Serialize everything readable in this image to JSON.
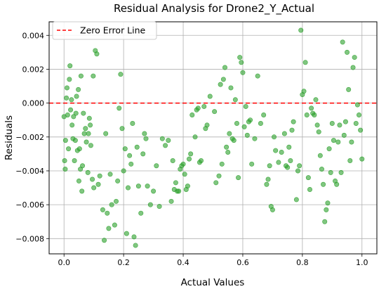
{
  "chart_data": {
    "type": "scatter",
    "title": "Residual Analysis for Drone2_Y_Actual",
    "xlabel": "Actual Values",
    "ylabel": "Residuals",
    "xlim": [
      -0.05,
      1.05
    ],
    "ylim": [
      -0.0089,
      0.0048
    ],
    "xticks": [
      0.0,
      0.2,
      0.4,
      0.6,
      0.8,
      1.0
    ],
    "xtick_labels": [
      "0.0",
      "0.2",
      "0.4",
      "0.6",
      "0.8",
      "1.0"
    ],
    "yticks": [
      -0.008,
      -0.006,
      -0.004,
      -0.002,
      0.0,
      0.002,
      0.004
    ],
    "ytick_labels": [
      "−0.008",
      "−0.006",
      "−0.004",
      "−0.002",
      "0.000",
      "0.002",
      "0.004"
    ],
    "grid": true,
    "legend": {
      "placement": "top-left",
      "entries": [
        {
          "label": "Zero Error Line",
          "style": "dashed",
          "color": "#ff0000"
        }
      ]
    },
    "reference_line": {
      "y": 0.0,
      "color": "#ff0000",
      "style": "dashed",
      "label": "Zero Error Line"
    },
    "point_color": "#2ca02c",
    "series": [
      {
        "points": [
          [
            0.0,
            -0.0008
          ],
          [
            0.002,
            -0.0034
          ],
          [
            0.004,
            -0.0039
          ],
          [
            0.005,
            -0.0022
          ],
          [
            0.008,
            0.0003
          ],
          [
            0.01,
            0.0009
          ],
          [
            0.012,
            -0.0007
          ],
          [
            0.015,
            -0.0027
          ],
          [
            0.018,
            0.0014
          ],
          [
            0.02,
            0.0022
          ],
          [
            0.022,
            -0.0004
          ],
          [
            0.025,
            0.0002
          ],
          [
            0.027,
            -0.0013
          ],
          [
            0.03,
            -0.0021
          ],
          [
            0.032,
            -0.0008
          ],
          [
            0.035,
            -0.0034
          ],
          [
            0.038,
            -0.0022
          ],
          [
            0.04,
            -0.0006
          ],
          [
            0.042,
            0.0004
          ],
          [
            0.045,
            -0.0028
          ],
          [
            0.048,
            0.0008
          ],
          [
            0.05,
            -0.0046
          ],
          [
            0.052,
            -0.0027
          ],
          [
            0.055,
            -0.0039
          ],
          [
            0.057,
            0.0016
          ],
          [
            0.06,
            -0.0052
          ],
          [
            0.062,
            -0.0037
          ],
          [
            0.065,
            -0.0006
          ],
          [
            0.068,
            -0.0018
          ],
          [
            0.072,
            -0.0015
          ],
          [
            0.075,
            -0.0023
          ],
          [
            0.08,
            -0.0041
          ],
          [
            0.082,
            -0.0018
          ],
          [
            0.085,
            -0.0009
          ],
          [
            0.088,
            -0.0013
          ],
          [
            0.09,
            -0.0025
          ],
          [
            0.095,
            -0.0045
          ],
          [
            0.098,
            0.0016
          ],
          [
            0.1,
            -0.005
          ],
          [
            0.105,
            0.0031
          ],
          [
            0.11,
            0.0029
          ],
          [
            0.115,
            -0.0048
          ],
          [
            0.12,
            -0.0043
          ],
          [
            0.13,
            -0.0063
          ],
          [
            0.135,
            -0.0081
          ],
          [
            0.14,
            -0.0018
          ],
          [
            0.145,
            -0.0065
          ],
          [
            0.15,
            -0.0074
          ],
          [
            0.155,
            -0.0042
          ],
          [
            0.16,
            -0.006
          ],
          [
            0.17,
            -0.0072
          ],
          [
            0.175,
            -0.0058
          ],
          [
            0.18,
            -0.0046
          ],
          [
            0.185,
            -0.0003
          ],
          [
            0.19,
            0.0017
          ],
          [
            0.195,
            -0.0015
          ],
          [
            0.2,
            -0.004
          ],
          [
            0.205,
            -0.0027
          ],
          [
            0.21,
            -0.0077
          ],
          [
            0.215,
            -0.005
          ],
          [
            0.22,
            -0.0031
          ],
          [
            0.225,
            -0.0036
          ],
          [
            0.23,
            -0.0012
          ],
          [
            0.235,
            -0.0079
          ],
          [
            0.24,
            -0.0084
          ],
          [
            0.245,
            -0.0026
          ],
          [
            0.25,
            -0.0049
          ],
          [
            0.258,
            -0.0065
          ],
          [
            0.265,
            -0.003
          ],
          [
            0.27,
            -0.0018
          ],
          [
            0.275,
            -0.0021
          ],
          [
            0.28,
            -0.0049
          ],
          [
            0.29,
            -0.006
          ],
          [
            0.3,
            -0.0052
          ],
          [
            0.31,
            -0.0037
          ],
          [
            0.32,
            -0.0061
          ],
          [
            0.33,
            -0.0021
          ],
          [
            0.34,
            -0.0025
          ],
          [
            0.35,
            -0.0022
          ],
          [
            0.36,
            -0.0058
          ],
          [
            0.365,
            -0.0034
          ],
          [
            0.37,
            -0.0051
          ],
          [
            0.375,
            -0.0047
          ],
          [
            0.38,
            -0.0052
          ],
          [
            0.385,
            -0.0052
          ],
          [
            0.39,
            -0.0039
          ],
          [
            0.395,
            -0.0037
          ],
          [
            0.4,
            -0.0036
          ],
          [
            0.405,
            -0.0042
          ],
          [
            0.41,
            -0.0051
          ],
          [
            0.415,
            -0.0049
          ],
          [
            0.42,
            -0.0033
          ],
          [
            0.425,
            -0.003
          ],
          [
            0.43,
            -0.0007
          ],
          [
            0.44,
            -0.002
          ],
          [
            0.445,
            -0.0004
          ],
          [
            0.45,
            -0.0003
          ],
          [
            0.455,
            -0.0035
          ],
          [
            0.46,
            -0.0034
          ],
          [
            0.47,
            -0.0002
          ],
          [
            0.475,
            -0.0015
          ],
          [
            0.48,
            -0.0013
          ],
          [
            0.49,
            0.0004
          ],
          [
            0.505,
            -0.0005
          ],
          [
            0.51,
            -0.0047
          ],
          [
            0.52,
            -0.0043
          ],
          [
            0.525,
            0.0011
          ],
          [
            0.53,
            -0.0036
          ],
          [
            0.535,
            0.0014
          ],
          [
            0.54,
            0.0021
          ],
          [
            0.545,
            -0.0026
          ],
          [
            0.55,
            -0.0029
          ],
          [
            0.555,
            -0.0018
          ],
          [
            0.56,
            0.0009
          ],
          [
            0.565,
            -0.0021
          ],
          [
            0.57,
            -0.0022
          ],
          [
            0.575,
            0.0002
          ],
          [
            0.58,
            -0.0012
          ],
          [
            0.585,
            -0.0044
          ],
          [
            0.59,
            0.0027
          ],
          [
            0.595,
            0.0024
          ],
          [
            0.6,
            0.0018
          ],
          [
            0.605,
            -0.0014
          ],
          [
            0.61,
            -0.0002
          ],
          [
            0.615,
            -0.0019
          ],
          [
            0.62,
            -0.0011
          ],
          [
            0.625,
            -0.001
          ],
          [
            0.63,
            -0.0036
          ],
          [
            0.64,
            -0.0021
          ],
          [
            0.65,
            0.0016
          ],
          [
            0.66,
            -0.0012
          ],
          [
            0.67,
            -0.0007
          ],
          [
            0.68,
            -0.0048
          ],
          [
            0.685,
            -0.0045
          ],
          [
            0.69,
            -0.0037
          ],
          [
            0.695,
            -0.0061
          ],
          [
            0.7,
            -0.0063
          ],
          [
            0.705,
            -0.002
          ],
          [
            0.71,
            -0.0028
          ],
          [
            0.72,
            -0.0035
          ],
          [
            0.73,
            -0.0029
          ],
          [
            0.74,
            -0.0018
          ],
          [
            0.745,
            -0.0037
          ],
          [
            0.75,
            -0.0038
          ],
          [
            0.755,
            -0.0026
          ],
          [
            0.76,
            -0.0034
          ],
          [
            0.765,
            -0.0016
          ],
          [
            0.77,
            -0.0011
          ],
          [
            0.78,
            -0.0057
          ],
          [
            0.785,
            -0.004
          ],
          [
            0.79,
            -0.0037
          ],
          [
            0.795,
            0.0043
          ],
          [
            0.8,
            0.0005
          ],
          [
            0.805,
            0.0007
          ],
          [
            0.81,
            0.0024
          ],
          [
            0.815,
            -0.0007
          ],
          [
            0.82,
            -0.0044
          ],
          [
            0.825,
            -0.0051
          ],
          [
            0.83,
            -0.0003
          ],
          [
            0.835,
            -0.0006
          ],
          [
            0.84,
            -0.0007
          ],
          [
            0.845,
            0.0002
          ],
          [
            0.85,
            -0.0013
          ],
          [
            0.855,
            -0.0017
          ],
          [
            0.86,
            -0.0031
          ],
          [
            0.865,
            -0.0039
          ],
          [
            0.87,
            -0.0048
          ],
          [
            0.875,
            -0.007
          ],
          [
            0.88,
            -0.0063
          ],
          [
            0.885,
            -0.0059
          ],
          [
            0.89,
            -0.0027
          ],
          [
            0.895,
            -0.0041
          ],
          [
            0.9,
            -0.0012
          ],
          [
            0.905,
            -0.0022
          ],
          [
            0.91,
            -0.0046
          ],
          [
            0.915,
            -0.0048
          ],
          [
            0.92,
            -0.0023
          ],
          [
            0.925,
            -0.0013
          ],
          [
            0.93,
            -0.0041
          ],
          [
            0.935,
            0.0036
          ],
          [
            0.94,
            -0.0019
          ],
          [
            0.945,
            -0.0011
          ],
          [
            0.95,
            0.003
          ],
          [
            0.955,
            0.0008
          ],
          [
            0.96,
            -0.0034
          ],
          [
            0.965,
            -0.0023
          ],
          [
            0.97,
            0.0021
          ],
          [
            0.975,
            0.0027
          ],
          [
            0.98,
            -0.0012
          ],
          [
            0.985,
            -0.0001
          ],
          [
            0.99,
            -0.0007
          ],
          [
            0.995,
            -0.0016
          ],
          [
            1.0,
            -0.0033
          ]
        ]
      }
    ]
  }
}
